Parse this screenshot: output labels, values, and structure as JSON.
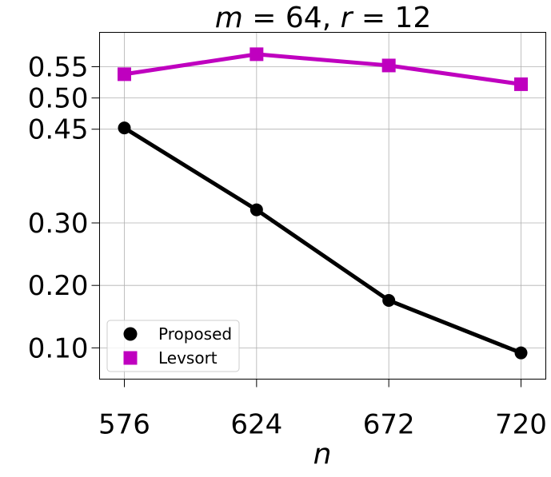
{
  "chart_data": {
    "type": "line",
    "title": "m = 64, r = 12",
    "title_parts": {
      "m_var": "m",
      "m_eq": " = 64, ",
      "r_var": "r",
      "r_eq": " = 12"
    },
    "xlabel": "n",
    "ylabel": "",
    "x": [
      576,
      624,
      672,
      720
    ],
    "x_tick_labels": [
      "576",
      "624",
      "672",
      "720"
    ],
    "xlim": [
      567,
      729
    ],
    "y_ticks": [
      0.1,
      0.2,
      0.3,
      0.45,
      0.5,
      0.55
    ],
    "y_tick_labels": [
      "0.10",
      "0.20",
      "0.30",
      "0.45",
      "0.50",
      "0.55"
    ],
    "ylim": [
      0.05,
      0.605
    ],
    "grid": true,
    "legend_position": "lower-left",
    "series": [
      {
        "name": "Proposed",
        "marker": "circle",
        "color": "#000000",
        "values": [
          0.452,
          0.321,
          0.176,
          0.092
        ]
      },
      {
        "name": "Levsort",
        "marker": "square",
        "color": "#bf00bf",
        "values": [
          0.538,
          0.57,
          0.552,
          0.522
        ]
      }
    ]
  }
}
